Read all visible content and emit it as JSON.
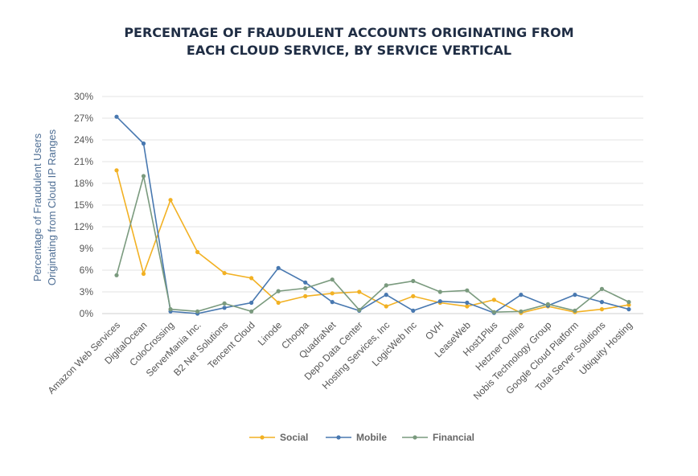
{
  "chart_data": {
    "type": "line",
    "title_line1": "PERCENTAGE OF FRAUDULENT ACCOUNTS ORIGINATING FROM",
    "title_line2": "EACH CLOUD SERVICE, BY SERVICE VERTICAL",
    "ylabel_line1": "Percentage of Fraudulent Users",
    "ylabel_line2": "Originating from Cloud IP Ranges",
    "ylim": [
      0,
      30
    ],
    "yticks": [
      "0%",
      "3%",
      "6%",
      "9%",
      "12%",
      "15%",
      "18%",
      "21%",
      "24%",
      "27%",
      "30%"
    ],
    "grid": true,
    "legend_position": "bottom",
    "categories": [
      "Amazon Web Services",
      "DigitalOcean",
      "ColoCrossing",
      "ServerMania Inc.",
      "B2 Net Solutions",
      "Tencent Cloud",
      "Linode",
      "Choopa",
      "QuadraNet",
      "Depo Data Center",
      "Hosting Services, Inc",
      "LogicWeb Inc",
      "OVH",
      "LeaseWeb",
      "Host1Plus",
      "Hetzner Online",
      "Nobis Technology Group",
      "Google Cloud Platform",
      "Total Server Solutions",
      "Ubiquity Hosting"
    ],
    "series": [
      {
        "name": "Social",
        "color": "#f2b123",
        "values": [
          19.8,
          5.5,
          15.7,
          8.5,
          5.6,
          4.9,
          1.5,
          2.4,
          2.8,
          3.0,
          1.0,
          2.4,
          1.5,
          1.0,
          1.9,
          0.1,
          1.0,
          0.2,
          0.6,
          1.2
        ]
      },
      {
        "name": "Mobile",
        "color": "#4878b0",
        "values": [
          27.2,
          23.5,
          0.3,
          0.0,
          0.8,
          1.5,
          6.3,
          4.3,
          1.6,
          0.4,
          2.6,
          0.4,
          1.7,
          1.5,
          0.1,
          2.6,
          1.1,
          2.6,
          1.6,
          0.6
        ]
      },
      {
        "name": "Financial",
        "color": "#7a9a7e",
        "values": [
          5.3,
          19.0,
          0.6,
          0.3,
          1.4,
          0.3,
          3.1,
          3.5,
          4.7,
          0.5,
          3.9,
          4.5,
          3.0,
          3.2,
          0.2,
          0.3,
          1.3,
          0.4,
          3.4,
          1.6
        ]
      }
    ]
  }
}
